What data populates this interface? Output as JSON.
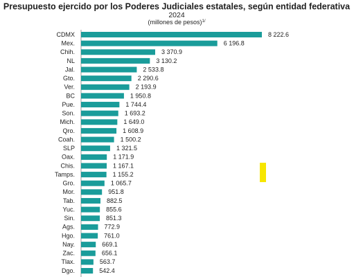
{
  "chart_data": {
    "type": "barh",
    "title": "Presupuesto ejercido por los Poderes Judiciales estatales, según entidad federativa",
    "subtitle": "2024",
    "units": "(millones de pesos)",
    "units_note": "1/",
    "color": "#1a9c9a",
    "categories": [
      "CDMX",
      "Mex.",
      "Chih.",
      "NL",
      "Jal.",
      "Gto.",
      "Ver.",
      "BC",
      "Pue.",
      "Son.",
      "Mich.",
      "Qro.",
      "Coah.",
      "SLP",
      "Oax.",
      "Chis.",
      "Tamps.",
      "Gro.",
      "Mor.",
      "Tab.",
      "Yuc.",
      "Sin.",
      "Ags.",
      "Hgo.",
      "Nay.",
      "Zac.",
      "Tlax.",
      "Dgo."
    ],
    "values": [
      8222.6,
      6196.8,
      3370.9,
      3130.2,
      2533.8,
      2290.6,
      2193.9,
      1950.8,
      1744.4,
      1693.2,
      1649.0,
      1608.9,
      1500.2,
      1321.5,
      1171.9,
      1167.1,
      1155.2,
      1065.7,
      951.8,
      882.5,
      855.6,
      851.3,
      772.9,
      761.0,
      669.1,
      656.1,
      563.7,
      542.4
    ],
    "value_labels": [
      "8 222.6",
      "6 196.8",
      "3 370.9",
      "3 130.2",
      "2 533.8",
      "2 290.6",
      "2 193.9",
      "1 950.8",
      "1 744.4",
      "1 693.2",
      "1 649.0",
      "1 608.9",
      "1 500.2",
      "1 321.5",
      "1 171.9",
      "1 167.1",
      "1 155.2",
      "1 065.7",
      "951.8",
      "882.5",
      "855.6",
      "851.3",
      "772.9",
      "761.0",
      "669.1",
      "656.1",
      "563.7",
      "542.4"
    ]
  }
}
